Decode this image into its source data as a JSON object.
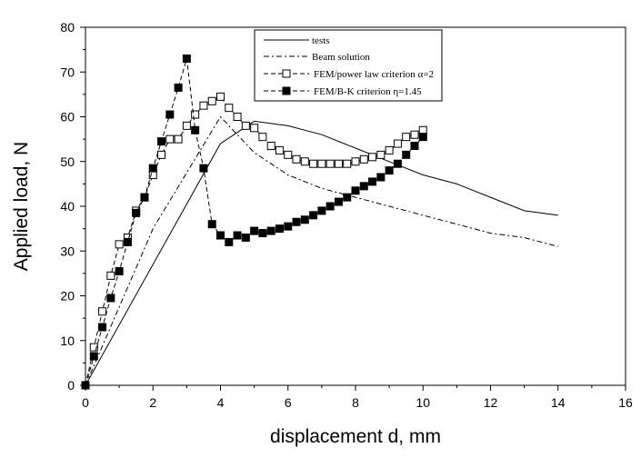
{
  "chart_data": {
    "type": "line",
    "xlabel": "displacement d, mm",
    "ylabel": "Applied load, N",
    "xlim": [
      0,
      16
    ],
    "ylim": [
      0,
      80
    ],
    "xticks": [
      "0",
      "2",
      "4",
      "6",
      "8",
      "10",
      "12",
      "14",
      "16"
    ],
    "yticks": [
      "0",
      "10",
      "20",
      "30",
      "40",
      "50",
      "60",
      "70",
      "80"
    ],
    "grid": false,
    "legend_position": "top-right",
    "series": [
      {
        "name": "tests",
        "style": "solid",
        "marker": "none",
        "x": [
          0,
          4,
          5,
          6,
          7,
          8,
          9,
          10,
          11,
          12,
          13,
          14
        ],
        "y": [
          0,
          54,
          59,
          58,
          56,
          53,
          50,
          47,
          45,
          42,
          39,
          38
        ]
      },
      {
        "name": "Beam solution",
        "style": "dash-dot",
        "marker": "none",
        "x": [
          0,
          2,
          4,
          5,
          6,
          7,
          8,
          9,
          10,
          11,
          12,
          13,
          14
        ],
        "y": [
          0,
          35,
          60,
          52,
          47,
          44,
          42,
          40,
          38,
          36,
          34,
          33,
          31
        ]
      },
      {
        "name": "FEM/power law criterion α=2",
        "style": "dash",
        "marker": "open-square",
        "x": [
          0,
          0.25,
          0.5,
          0.75,
          1.0,
          1.25,
          1.5,
          1.75,
          2.0,
          2.25,
          2.5,
          2.75,
          3.0,
          3.25,
          3.5,
          3.75,
          4.0,
          4.25,
          4.5,
          4.75,
          5.0,
          5.25,
          5.5,
          5.75,
          6.0,
          6.25,
          6.5,
          6.75,
          7.0,
          7.25,
          7.5,
          7.75,
          8.0,
          8.25,
          8.5,
          8.75,
          9.0,
          9.25,
          9.5,
          9.75,
          10.0
        ],
        "y": [
          0,
          8.5,
          16.5,
          24.5,
          31.5,
          33,
          39,
          42,
          47,
          51.5,
          55,
          55,
          58,
          60.5,
          62.5,
          63.5,
          64.5,
          62,
          60,
          58,
          57.5,
          55.5,
          53.5,
          52.5,
          51.5,
          50.5,
          50,
          49.5,
          49.5,
          49.5,
          49.5,
          49.5,
          50,
          50.5,
          51,
          51.5,
          52.5,
          54,
          55.5,
          56,
          57
        ]
      },
      {
        "name": "FEM/B-K criterion η=1.45",
        "style": "dash",
        "marker": "filled-square",
        "x": [
          0,
          0.25,
          0.5,
          0.75,
          1.0,
          1.25,
          1.5,
          1.75,
          2.0,
          2.25,
          2.5,
          2.75,
          3.0,
          3.25,
          3.5,
          3.75,
          4.0,
          4.25,
          4.5,
          4.75,
          5.0,
          5.25,
          5.5,
          5.75,
          6.0,
          6.25,
          6.5,
          6.75,
          7.0,
          7.25,
          7.5,
          7.75,
          8.0,
          8.25,
          8.5,
          8.75,
          9.0,
          9.25,
          9.5,
          9.75,
          10.0
        ],
        "y": [
          0,
          6.5,
          13,
          19.5,
          25.5,
          32,
          38.5,
          42,
          48.5,
          54.5,
          60.5,
          66.5,
          73,
          57,
          48.5,
          36,
          33.5,
          32,
          33.5,
          33,
          34.5,
          34,
          34.5,
          35,
          35.5,
          36.5,
          37,
          38,
          39,
          40,
          41,
          42,
          43.5,
          44.5,
          45.5,
          46.5,
          48,
          49.5,
          51.5,
          53.5,
          55.5
        ]
      }
    ]
  }
}
